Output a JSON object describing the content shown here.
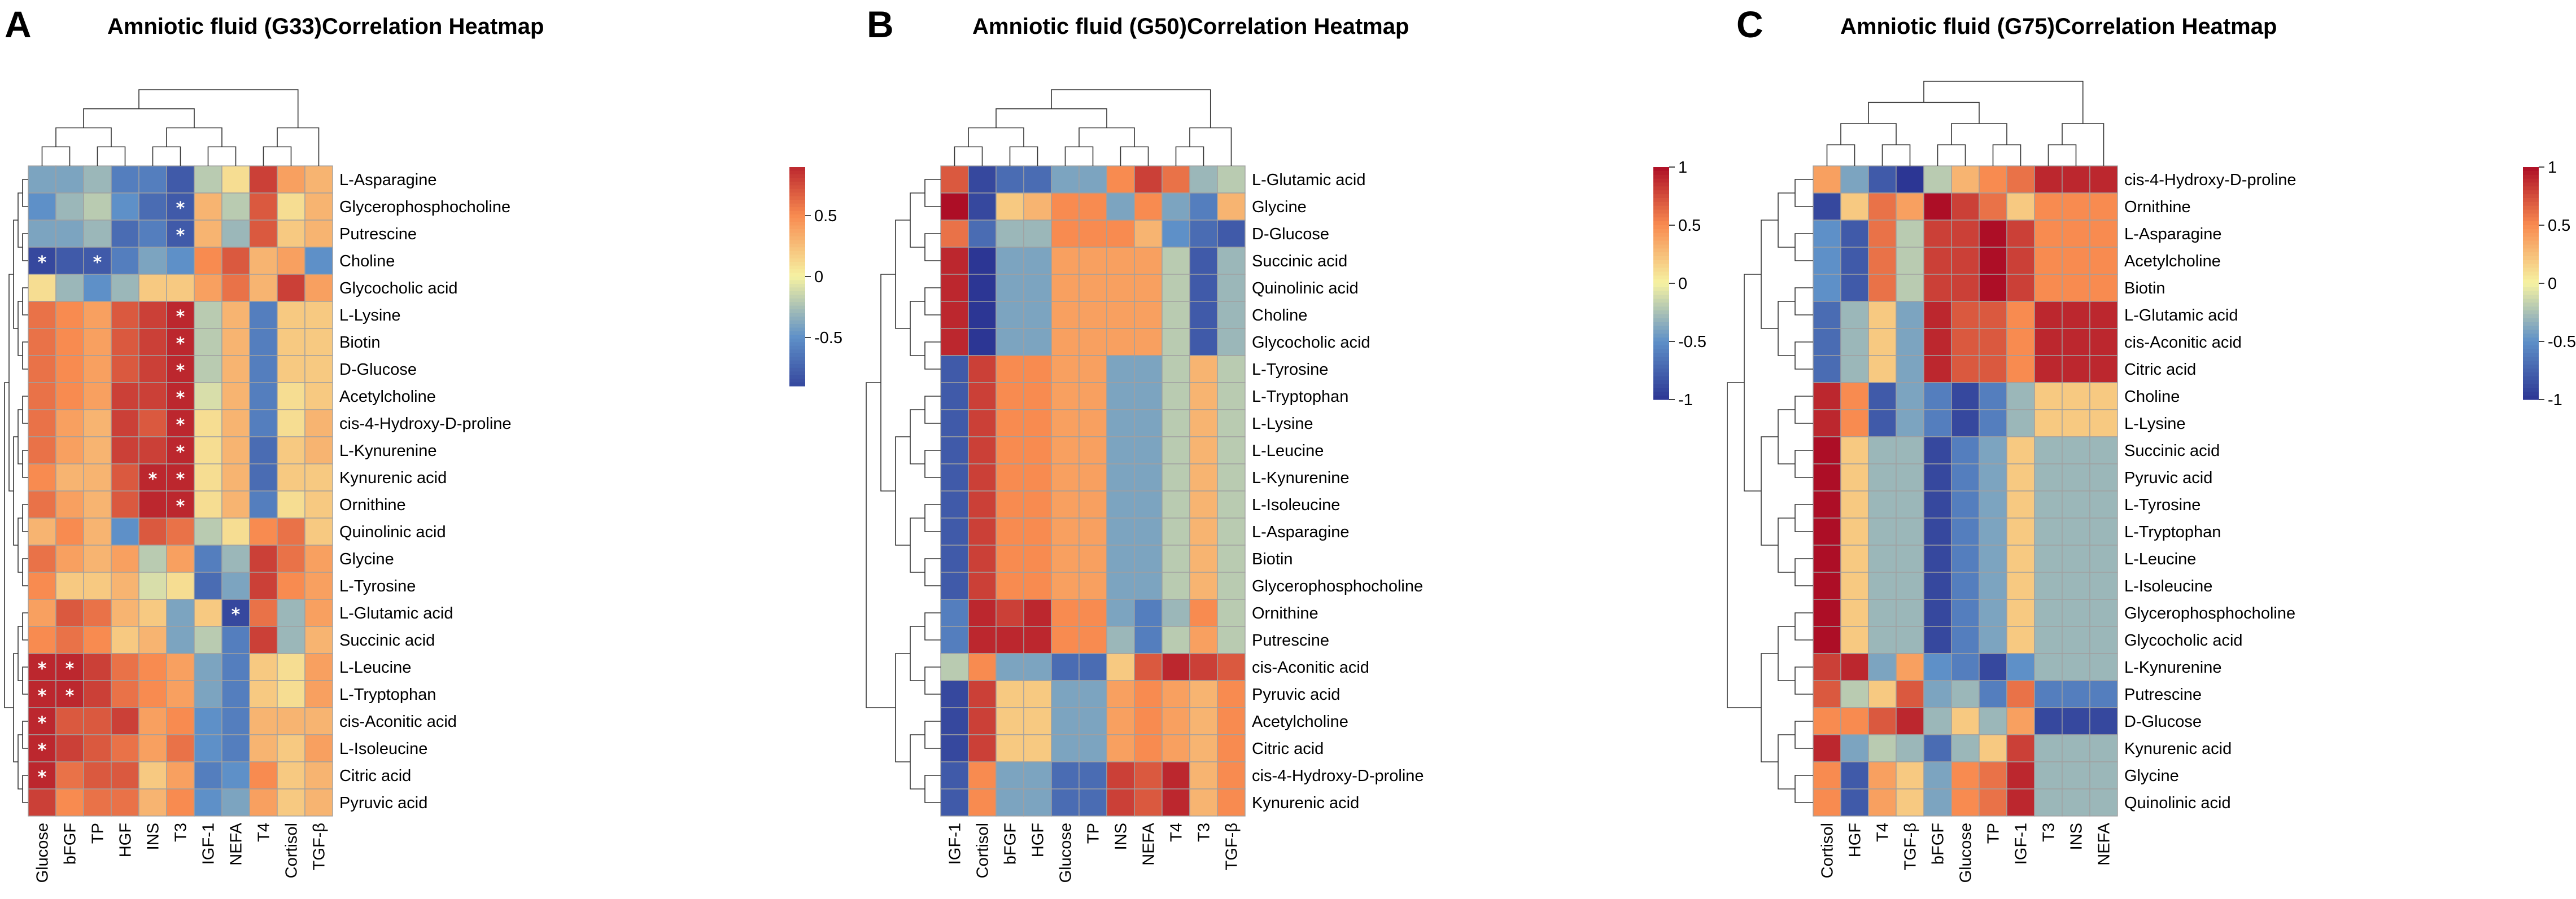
{
  "chart_data": [
    {
      "type": "heatmap",
      "panel": "A",
      "title": "Amniotic fluid (G33)Correlation Heatmap",
      "columns": [
        "Glucose",
        "bFGF",
        "TP",
        "HGF",
        "INS",
        "T3",
        "IGF-1",
        "NEFA",
        "T4",
        "Cortisol",
        "TGF-β"
      ],
      "rows": [
        "L-Asparagine",
        "Glycerophosphocholine",
        "Putrescine",
        "Choline",
        "Glycocholic acid",
        "L-Lysine",
        "Biotin",
        "D-Glucose",
        "Acetylcholine",
        "cis-4-Hydroxy-D-proline",
        "L-Kynurenine",
        "Kynurenic acid",
        "Ornithine",
        "Quinolinic acid",
        "Glycine",
        "L-Tyrosine",
        "L-Glutamic acid",
        "Succinic acid",
        "L-Leucine",
        "L-Tryptophan",
        "cis-Aconitic acid",
        "L-Isoleucine",
        "Citric acid",
        "Pyruvic acid"
      ],
      "values": [
        [
          -0.4,
          -0.4,
          -0.3,
          -0.6,
          -0.6,
          -0.8,
          -0.2,
          0.1,
          0.8,
          0.4,
          0.3
        ],
        [
          -0.5,
          -0.3,
          -0.2,
          -0.5,
          -0.7,
          -0.8,
          0.3,
          -0.2,
          0.7,
          0.1,
          0.3
        ],
        [
          -0.4,
          -0.4,
          -0.3,
          -0.7,
          -0.6,
          -0.8,
          0.3,
          -0.3,
          0.7,
          0.2,
          0.3
        ],
        [
          -0.9,
          -0.8,
          -0.8,
          -0.6,
          -0.4,
          -0.5,
          0.5,
          0.7,
          0.3,
          0.4,
          -0.5
        ],
        [
          0.1,
          -0.3,
          -0.5,
          -0.3,
          0.2,
          0.2,
          0.4,
          0.6,
          0.3,
          0.8,
          0.4
        ],
        [
          0.6,
          0.5,
          0.4,
          0.7,
          0.8,
          0.9,
          -0.2,
          0.3,
          -0.6,
          0.2,
          0.2
        ],
        [
          0.6,
          0.5,
          0.4,
          0.7,
          0.8,
          0.9,
          -0.2,
          0.3,
          -0.6,
          0.2,
          0.2
        ],
        [
          0.6,
          0.5,
          0.4,
          0.7,
          0.8,
          0.9,
          -0.2,
          0.3,
          -0.6,
          0.2,
          0.2
        ],
        [
          0.6,
          0.5,
          0.4,
          0.8,
          0.8,
          0.9,
          -0.1,
          0.3,
          -0.6,
          0.1,
          0.2
        ],
        [
          0.6,
          0.4,
          0.3,
          0.8,
          0.7,
          0.9,
          0.1,
          0.3,
          -0.6,
          0.1,
          0.3
        ],
        [
          0.6,
          0.4,
          0.3,
          0.8,
          0.8,
          0.9,
          0.1,
          0.3,
          -0.7,
          0.2,
          0.3
        ],
        [
          0.5,
          0.3,
          0.3,
          0.7,
          0.9,
          0.9,
          0.1,
          0.3,
          -0.7,
          0.2,
          0.2
        ],
        [
          0.6,
          0.4,
          0.3,
          0.7,
          0.9,
          0.9,
          0.1,
          0.3,
          -0.6,
          0.1,
          0.2
        ],
        [
          0.3,
          0.5,
          0.3,
          -0.5,
          0.7,
          0.6,
          -0.2,
          0.1,
          0.5,
          0.6,
          0.2
        ],
        [
          0.6,
          0.4,
          0.3,
          0.4,
          -0.2,
          0.4,
          -0.6,
          -0.3,
          0.8,
          0.6,
          0.4
        ],
        [
          0.5,
          0.2,
          0.2,
          0.3,
          -0.1,
          0.1,
          -0.7,
          -0.4,
          0.8,
          0.5,
          0.4
        ],
        [
          0.4,
          0.7,
          0.6,
          0.3,
          0.2,
          -0.4,
          0.2,
          -0.9,
          0.6,
          -0.3,
          0.4
        ],
        [
          0.5,
          0.6,
          0.5,
          0.2,
          0.3,
          -0.4,
          -0.2,
          -0.6,
          0.8,
          -0.3,
          0.3
        ],
        [
          0.9,
          0.9,
          0.8,
          0.6,
          0.5,
          0.4,
          -0.4,
          -0.6,
          0.2,
          0.1,
          0.4
        ],
        [
          0.9,
          0.9,
          0.8,
          0.6,
          0.5,
          0.4,
          -0.4,
          -0.6,
          0.2,
          0.1,
          0.4
        ],
        [
          0.9,
          0.7,
          0.7,
          0.8,
          0.4,
          0.5,
          -0.5,
          -0.6,
          0.3,
          0.3,
          0.3
        ],
        [
          0.9,
          0.8,
          0.7,
          0.6,
          0.4,
          0.6,
          -0.5,
          -0.6,
          0.3,
          0.2,
          0.4
        ],
        [
          0.9,
          0.6,
          0.7,
          0.7,
          0.2,
          0.4,
          -0.6,
          -0.5,
          0.5,
          0.2,
          0.3
        ],
        [
          0.8,
          0.5,
          0.6,
          0.6,
          0.3,
          0.5,
          -0.5,
          -0.4,
          0.4,
          0.2,
          0.3
        ]
      ],
      "significant": [
        [
          1,
          5
        ],
        [
          2,
          5
        ],
        [
          3,
          0
        ],
        [
          3,
          2
        ],
        [
          5,
          5
        ],
        [
          6,
          5
        ],
        [
          7,
          5
        ],
        [
          8,
          5
        ],
        [
          9,
          5
        ],
        [
          10,
          5
        ],
        [
          11,
          4
        ],
        [
          11,
          5
        ],
        [
          12,
          5
        ],
        [
          16,
          7
        ],
        [
          18,
          0
        ],
        [
          18,
          1
        ],
        [
          19,
          0
        ],
        [
          19,
          1
        ],
        [
          20,
          0
        ],
        [
          21,
          0
        ],
        [
          22,
          0
        ]
      ],
      "significance_marker": "*",
      "colorbar": {
        "range": [
          -0.9,
          0.9
        ],
        "ticks": [
          0.5,
          0,
          -0.5
        ],
        "tick_labels": [
          "0.5",
          "0",
          "-0.5"
        ]
      }
    },
    {
      "type": "heatmap",
      "panel": "B",
      "title": "Amniotic fluid (G50)Correlation Heatmap",
      "columns": [
        "IGF-1",
        "Cortisol",
        "bFGF",
        "HGF",
        "Glucose",
        "TP",
        "INS",
        "NEFA",
        "T4",
        "T3",
        "TGF-β"
      ],
      "rows": [
        "L-Glutamic acid",
        "Glycine",
        "D-Glucose",
        "Succinic acid",
        "Quinolinic acid",
        "Choline",
        "Glycocholic acid",
        "L-Tyrosine",
        "L-Tryptophan",
        "L-Lysine",
        "L-Leucine",
        "L-Kynurenine",
        "L-Isoleucine",
        "L-Asparagine",
        "Biotin",
        "Glycerophosphocholine",
        "Ornithine",
        "Putrescine",
        "cis-Aconitic acid",
        "Pyruvic acid",
        "Acetylcholine",
        "Citric acid",
        "cis-4-Hydroxy-D-proline",
        "Kynurenic acid"
      ],
      "values": [
        [
          0.7,
          -0.9,
          -0.7,
          -0.7,
          -0.4,
          -0.4,
          0.5,
          0.8,
          0.6,
          -0.3,
          -0.2
        ],
        [
          1.0,
          -0.9,
          0.2,
          0.3,
          0.5,
          0.5,
          -0.4,
          0.5,
          -0.4,
          -0.6,
          0.3
        ],
        [
          0.6,
          -0.7,
          -0.3,
          -0.3,
          0.5,
          0.5,
          0.5,
          0.3,
          -0.5,
          -0.7,
          -0.8
        ],
        [
          0.9,
          -1.0,
          -0.4,
          -0.4,
          0.4,
          0.4,
          0.4,
          0.4,
          -0.2,
          -0.8,
          -0.3
        ],
        [
          0.9,
          -1.0,
          -0.4,
          -0.4,
          0.4,
          0.4,
          0.4,
          0.4,
          -0.2,
          -0.8,
          -0.3
        ],
        [
          0.9,
          -1.0,
          -0.4,
          -0.4,
          0.4,
          0.4,
          0.4,
          0.4,
          -0.2,
          -0.8,
          -0.3
        ],
        [
          0.9,
          -1.0,
          -0.4,
          -0.4,
          0.4,
          0.4,
          0.4,
          0.4,
          -0.2,
          -0.8,
          -0.3
        ],
        [
          -0.8,
          0.8,
          0.5,
          0.5,
          0.4,
          0.4,
          -0.4,
          -0.4,
          -0.2,
          0.3,
          -0.2
        ],
        [
          -0.8,
          0.8,
          0.5,
          0.5,
          0.4,
          0.4,
          -0.4,
          -0.4,
          -0.2,
          0.3,
          -0.2
        ],
        [
          -0.8,
          0.8,
          0.5,
          0.5,
          0.4,
          0.4,
          -0.4,
          -0.4,
          -0.2,
          0.3,
          -0.2
        ],
        [
          -0.8,
          0.8,
          0.5,
          0.5,
          0.4,
          0.4,
          -0.4,
          -0.4,
          -0.2,
          0.3,
          -0.2
        ],
        [
          -0.8,
          0.8,
          0.5,
          0.5,
          0.4,
          0.4,
          -0.4,
          -0.4,
          -0.2,
          0.3,
          -0.2
        ],
        [
          -0.8,
          0.8,
          0.5,
          0.5,
          0.4,
          0.4,
          -0.4,
          -0.4,
          -0.2,
          0.3,
          -0.2
        ],
        [
          -0.8,
          0.8,
          0.5,
          0.5,
          0.4,
          0.4,
          -0.4,
          -0.4,
          -0.2,
          0.3,
          -0.2
        ],
        [
          -0.8,
          0.8,
          0.5,
          0.5,
          0.4,
          0.4,
          -0.4,
          -0.4,
          -0.2,
          0.3,
          -0.2
        ],
        [
          -0.8,
          0.8,
          0.5,
          0.5,
          0.4,
          0.4,
          -0.4,
          -0.4,
          -0.2,
          0.3,
          -0.2
        ],
        [
          -0.6,
          0.9,
          0.8,
          0.9,
          0.5,
          0.5,
          -0.4,
          -0.6,
          -0.3,
          0.5,
          -0.2
        ],
        [
          -0.6,
          0.9,
          0.9,
          0.9,
          0.5,
          0.5,
          -0.3,
          -0.6,
          -0.2,
          0.4,
          -0.2
        ],
        [
          -0.2,
          0.5,
          -0.4,
          -0.4,
          -0.7,
          -0.7,
          0.2,
          0.7,
          0.9,
          0.8,
          0.7
        ],
        [
          -0.9,
          0.8,
          0.2,
          0.2,
          -0.4,
          -0.4,
          0.4,
          0.5,
          0.4,
          0.3,
          0.5
        ],
        [
          -0.9,
          0.8,
          0.2,
          0.2,
          -0.4,
          -0.4,
          0.4,
          0.5,
          0.4,
          0.3,
          0.5
        ],
        [
          -0.9,
          0.8,
          0.2,
          0.2,
          -0.4,
          -0.4,
          0.4,
          0.5,
          0.4,
          0.3,
          0.5
        ],
        [
          -0.8,
          0.5,
          -0.4,
          -0.4,
          -0.7,
          -0.7,
          0.8,
          0.7,
          0.9,
          0.3,
          0.5
        ],
        [
          -0.8,
          0.5,
          -0.4,
          -0.4,
          -0.7,
          -0.7,
          0.8,
          0.7,
          0.9,
          0.3,
          0.5
        ]
      ],
      "colorbar": {
        "range": [
          -1,
          1
        ],
        "ticks": [
          1,
          0.5,
          0,
          -0.5,
          -1
        ],
        "tick_labels": [
          "1",
          "0.5",
          "0",
          "-0.5",
          "-1"
        ]
      }
    },
    {
      "type": "heatmap",
      "panel": "C",
      "title": "Amniotic fluid (G75)Correlation Heatmap",
      "columns": [
        "Cortisol",
        "HGF",
        "T4",
        "TGF-β",
        "bFGF",
        "Glucose",
        "TP",
        "IGF-1",
        "T3",
        "INS",
        "NEFA"
      ],
      "rows": [
        "cis-4-Hydroxy-D-proline",
        "Ornithine",
        "L-Asparagine",
        "Acetylcholine",
        "Biotin",
        "L-Glutamic acid",
        "cis-Aconitic acid",
        "Citric acid",
        "Choline",
        "L-Lysine",
        "Succinic acid",
        "Pyruvic acid",
        "L-Tyrosine",
        "L-Tryptophan",
        "L-Leucine",
        "L-Isoleucine",
        "Glycerophosphocholine",
        "Glycocholic acid",
        "L-Kynurenine",
        "Putrescine",
        "D-Glucose",
        "Kynurenic acid",
        "Glycine",
        "Quinolinic acid"
      ],
      "values": [
        [
          0.4,
          -0.4,
          -0.8,
          -1.0,
          -0.2,
          0.3,
          0.5,
          0.6,
          0.9,
          0.9,
          0.9
        ],
        [
          -0.9,
          0.2,
          0.6,
          0.4,
          1.0,
          0.8,
          0.6,
          0.2,
          0.5,
          0.5,
          0.5
        ],
        [
          -0.5,
          -0.8,
          0.6,
          -0.2,
          0.8,
          0.8,
          1.0,
          0.8,
          0.5,
          0.5,
          0.5
        ],
        [
          -0.5,
          -0.8,
          0.6,
          -0.2,
          0.8,
          0.8,
          1.0,
          0.8,
          0.5,
          0.5,
          0.5
        ],
        [
          -0.5,
          -0.8,
          0.6,
          -0.2,
          0.8,
          0.8,
          1.0,
          0.8,
          0.5,
          0.5,
          0.5
        ],
        [
          -0.7,
          -0.3,
          0.2,
          -0.4,
          0.9,
          0.7,
          0.7,
          0.5,
          0.9,
          0.9,
          0.9
        ],
        [
          -0.7,
          -0.3,
          0.2,
          -0.4,
          0.9,
          0.7,
          0.7,
          0.5,
          0.9,
          0.9,
          0.9
        ],
        [
          -0.7,
          -0.3,
          0.2,
          -0.4,
          0.9,
          0.7,
          0.7,
          0.5,
          0.9,
          0.9,
          0.9
        ],
        [
          0.9,
          0.5,
          -0.8,
          -0.4,
          -0.6,
          -0.9,
          -0.6,
          -0.3,
          0.2,
          0.2,
          0.2
        ],
        [
          0.9,
          0.5,
          -0.8,
          -0.4,
          -0.6,
          -0.9,
          -0.6,
          -0.3,
          0.2,
          0.2,
          0.2
        ],
        [
          1.0,
          0.2,
          -0.3,
          -0.3,
          -0.9,
          -0.6,
          -0.4,
          0.2,
          -0.3,
          -0.3,
          -0.3
        ],
        [
          1.0,
          0.2,
          -0.3,
          -0.3,
          -0.9,
          -0.6,
          -0.4,
          0.2,
          -0.3,
          -0.3,
          -0.3
        ],
        [
          1.0,
          0.2,
          -0.3,
          -0.3,
          -0.9,
          -0.6,
          -0.4,
          0.2,
          -0.3,
          -0.3,
          -0.3
        ],
        [
          1.0,
          0.2,
          -0.3,
          -0.3,
          -0.9,
          -0.6,
          -0.4,
          0.2,
          -0.3,
          -0.3,
          -0.3
        ],
        [
          1.0,
          0.2,
          -0.3,
          -0.3,
          -0.9,
          -0.6,
          -0.4,
          0.2,
          -0.3,
          -0.3,
          -0.3
        ],
        [
          1.0,
          0.2,
          -0.3,
          -0.3,
          -0.9,
          -0.6,
          -0.4,
          0.2,
          -0.3,
          -0.3,
          -0.3
        ],
        [
          1.0,
          0.2,
          -0.3,
          -0.3,
          -0.9,
          -0.6,
          -0.4,
          0.2,
          -0.3,
          -0.3,
          -0.3
        ],
        [
          1.0,
          0.2,
          -0.3,
          -0.3,
          -0.9,
          -0.6,
          -0.4,
          0.2,
          -0.3,
          -0.3,
          -0.3
        ],
        [
          0.8,
          0.9,
          -0.4,
          0.4,
          -0.5,
          -0.6,
          -0.9,
          -0.5,
          -0.3,
          -0.3,
          -0.3
        ],
        [
          0.7,
          -0.2,
          0.2,
          0.7,
          -0.4,
          -0.3,
          -0.6,
          0.6,
          -0.6,
          -0.6,
          -0.6
        ],
        [
          0.5,
          0.5,
          0.7,
          0.9,
          -0.3,
          0.2,
          -0.3,
          0.4,
          -0.9,
          -0.9,
          -0.9
        ],
        [
          0.9,
          -0.4,
          -0.2,
          -0.3,
          -0.7,
          -0.3,
          0.2,
          0.8,
          -0.3,
          -0.3,
          -0.3
        ],
        [
          0.5,
          -0.8,
          0.4,
          0.2,
          -0.4,
          0.5,
          0.6,
          0.9,
          -0.3,
          -0.3,
          -0.3
        ],
        [
          0.5,
          -0.8,
          0.4,
          0.2,
          -0.4,
          0.5,
          0.6,
          0.9,
          -0.3,
          -0.3,
          -0.3
        ]
      ],
      "colorbar": {
        "range": [
          -1,
          1
        ],
        "ticks": [
          1,
          0.5,
          0,
          -0.5,
          -1
        ],
        "tick_labels": [
          "1",
          "0.5",
          "0",
          "-0.5",
          "-1"
        ]
      }
    }
  ],
  "colors": {
    "scale_low": "#2c3694",
    "scale_mid_low": "#5e90c8",
    "scale_mid": "#f6f2a2",
    "scale_mid_high": "#f88b50",
    "scale_high": "#ad0e26",
    "cell_border": "#a0a0a0",
    "significance_marker": "#ffffff"
  }
}
